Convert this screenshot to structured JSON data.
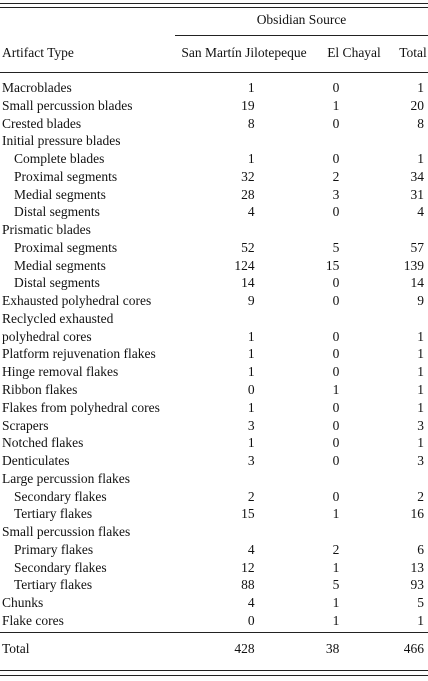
{
  "header": {
    "group": "Obsidian Source",
    "columns": [
      "Artifact Type",
      "San Martín Jilotepeque",
      "El Chayal",
      "Total"
    ]
  },
  "table": {
    "rows": [
      {
        "label": "Macroblades",
        "values": [
          1,
          0,
          1
        ]
      },
      {
        "label": "Small percussion blades",
        "values": [
          19,
          1,
          20
        ]
      },
      {
        "label": "Crested blades",
        "values": [
          8,
          0,
          8
        ]
      },
      {
        "label": "Initial pressure blades",
        "rows": [
          {
            "label": "Complete blades",
            "values": [
              1,
              0,
              1
            ]
          },
          {
            "label": "Proximal segments",
            "values": [
              32,
              2,
              34
            ]
          },
          {
            "label": "Medial segments",
            "values": [
              28,
              3,
              31
            ]
          },
          {
            "label": "Distal segments",
            "values": [
              4,
              0,
              4
            ]
          }
        ]
      },
      {
        "label": "Prismatic blades",
        "rows": [
          {
            "label": "Proximal segments",
            "values": [
              52,
              5,
              57
            ]
          },
          {
            "label": "Medial segments",
            "values": [
              124,
              15,
              139
            ]
          },
          {
            "label": "Distal segments",
            "values": [
              14,
              0,
              14
            ]
          }
        ]
      },
      {
        "label": "Exhausted polyhedral cores",
        "values": [
          9,
          0,
          9
        ]
      },
      {
        "label": "Reclycled exhausted polyhedral cores",
        "values": [
          1,
          0,
          1
        ]
      },
      {
        "label": "Platform rejuvenation flakes",
        "values": [
          1,
          0,
          1
        ]
      },
      {
        "label": "Hinge removal flakes",
        "values": [
          1,
          0,
          1
        ]
      },
      {
        "label": "Ribbon flakes",
        "values": [
          0,
          1,
          1
        ]
      },
      {
        "label": "Flakes from polyhedral cores",
        "values": [
          1,
          0,
          1
        ]
      },
      {
        "label": "Scrapers",
        "values": [
          3,
          0,
          3
        ]
      },
      {
        "label": "Notched flakes",
        "values": [
          1,
          0,
          1
        ]
      },
      {
        "label": "Denticulates",
        "values": [
          3,
          0,
          3
        ]
      },
      {
        "label": "Large percussion flakes",
        "rows": [
          {
            "label": "Secondary flakes",
            "values": [
              2,
              0,
              2
            ]
          },
          {
            "label": "Tertiary flakes",
            "values": [
              15,
              1,
              16
            ]
          }
        ]
      },
      {
        "label": "Small percussion flakes",
        "rows": [
          {
            "label": "Primary flakes",
            "values": [
              4,
              2,
              6
            ]
          },
          {
            "label": "Secondary flakes",
            "values": [
              12,
              1,
              13
            ]
          },
          {
            "label": "Tertiary flakes",
            "values": [
              88,
              5,
              93
            ]
          }
        ]
      },
      {
        "label": "Chunks",
        "values": [
          4,
          1,
          5
        ]
      },
      {
        "label": "Flake cores",
        "values": [
          0,
          1,
          1
        ]
      }
    ],
    "total": {
      "label": "Total",
      "values": [
        428,
        38,
        466
      ]
    }
  }
}
